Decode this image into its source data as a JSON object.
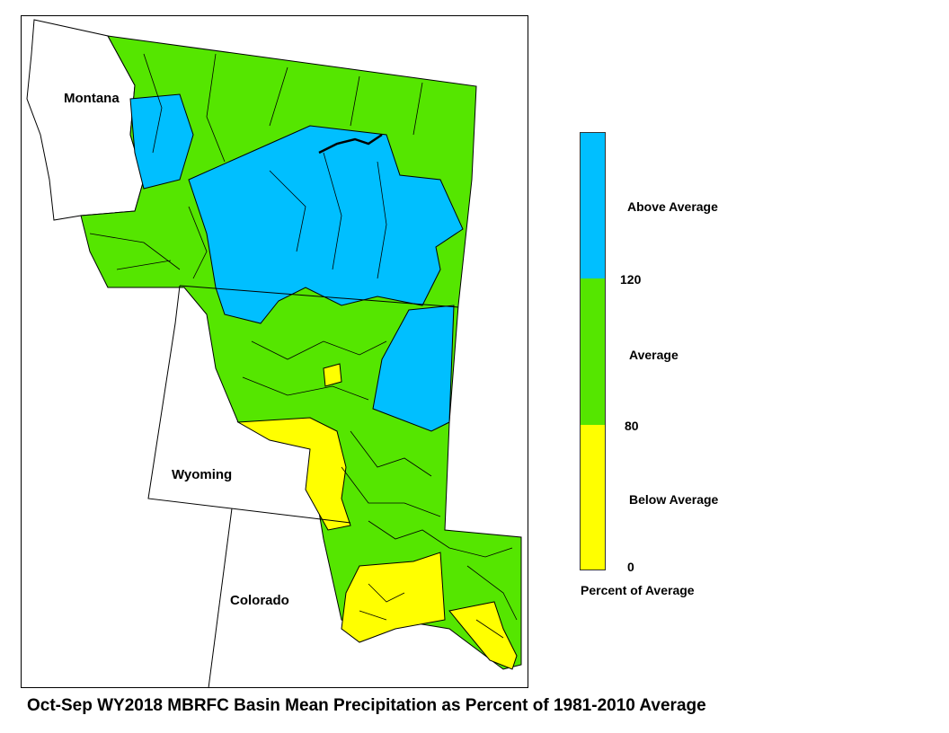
{
  "map": {
    "state_labels": {
      "montana": "Montana",
      "wyoming": "Wyoming",
      "colorado": "Colorado"
    },
    "colors": {
      "above": "#00bfff",
      "average": "#55e600",
      "below": "#ffff00",
      "outline": "#000000"
    }
  },
  "legend": {
    "above_label": "Above Average",
    "average_label": "Average",
    "below_label": "Below Average",
    "tick_120": "120",
    "tick_80": "80",
    "tick_0": "0",
    "title": "Percent of Average"
  },
  "caption": "Oct-Sep WY2018 MBRFC Basin Mean Precipitation as Percent of 1981-2010 Average"
}
